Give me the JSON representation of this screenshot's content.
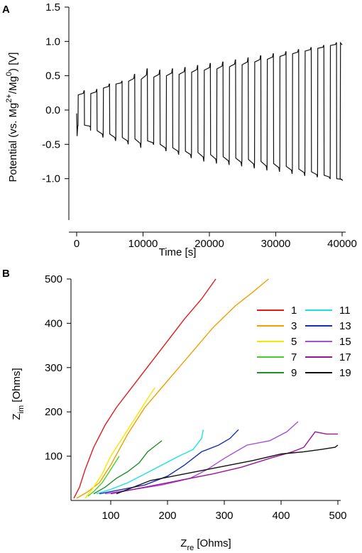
{
  "chart_data": [
    {
      "type": "line",
      "panel_label": "A",
      "xlabel": "Time [s]",
      "ylabel_parts": [
        "Potential (vs. Mg",
        "2+",
        "/Mg",
        "0",
        ") [V]"
      ],
      "xlim": [
        0,
        40000
      ],
      "ylim": [
        -1.5,
        1.5
      ],
      "xticks": [
        0,
        10000,
        20000,
        30000,
        40000
      ],
      "yticks": [
        -1.0,
        -0.5,
        0.0,
        0.5,
        1.0,
        1.5
      ],
      "ytick_labels": [
        "-1.0",
        "-0.5",
        "0.0",
        "0.5",
        "1.0",
        "1.5"
      ],
      "cycles": {
        "period": 1900,
        "start_high": [
          0.22,
          0.24,
          0.32,
          0.38,
          0.42,
          0.45,
          0.48,
          0.5,
          0.52,
          0.55,
          0.58,
          0.6,
          0.63,
          0.66,
          0.7,
          0.74,
          0.78,
          0.82,
          0.86,
          0.9,
          0.94
        ],
        "peak_high": [
          0.28,
          0.3,
          0.38,
          0.42,
          0.52,
          0.6,
          0.58,
          0.6,
          0.62,
          0.65,
          0.68,
          0.7,
          0.73,
          0.76,
          0.79,
          0.82,
          0.85,
          0.88,
          0.91,
          0.94,
          0.98
        ],
        "low_start": [
          -0.22,
          -0.3,
          -0.35,
          -0.4,
          -0.42,
          -0.45,
          -0.5,
          -0.55,
          -0.6,
          -0.62,
          -0.65,
          -0.68,
          -0.7,
          -0.72,
          -0.75,
          -0.78,
          -0.82,
          -0.86,
          -0.9,
          -0.95,
          -1.0
        ],
        "low_end": [
          -0.25,
          -0.4,
          -0.45,
          -0.5,
          -0.55,
          -0.5,
          -0.6,
          -0.65,
          -0.7,
          -0.75,
          -0.78,
          -0.8,
          -0.82,
          -0.85,
          -0.88,
          -0.9,
          -0.93,
          -0.96,
          -0.98,
          -1.0,
          -1.02
        ]
      }
    },
    {
      "type": "line",
      "panel_label": "B",
      "xlabel_main": "Z",
      "xlabel_sub": "re",
      "xlabel_unit": " [Ohms]",
      "ylabel_main": "Z",
      "ylabel_sub": "im",
      "ylabel_unit": " [Ohms]",
      "xlim": [
        30,
        505
      ],
      "ylim": [
        0,
        500
      ],
      "xticks": [
        100,
        200,
        300,
        400,
        500
      ],
      "yticks": [
        100,
        200,
        300,
        400,
        500
      ],
      "series": [
        {
          "name": "1",
          "color": "#e41a1c",
          "x": [
            35,
            45,
            55,
            70,
            90,
            110,
            140,
            170,
            200,
            230,
            260,
            285
          ],
          "y": [
            5,
            30,
            70,
            120,
            170,
            210,
            260,
            310,
            360,
            410,
            455,
            500
          ]
        },
        {
          "name": "3",
          "color": "#f0a000",
          "x": [
            40,
            60,
            80,
            100,
            130,
            160,
            200,
            240,
            280,
            320,
            350,
            378
          ],
          "y": [
            5,
            20,
            40,
            80,
            150,
            210,
            270,
            330,
            390,
            440,
            470,
            500
          ]
        },
        {
          "name": "5",
          "color": "#f5e800",
          "x": [
            55,
            70,
            85,
            100,
            115,
            130,
            150,
            165,
            178
          ],
          "y": [
            5,
            30,
            60,
            100,
            130,
            160,
            200,
            230,
            255
          ]
        },
        {
          "name": "7",
          "color": "#44d02a",
          "x": [
            60,
            70,
            85,
            95,
            105,
            115
          ],
          "y": [
            10,
            20,
            40,
            60,
            80,
            100
          ]
        },
        {
          "name": "9",
          "color": "#1f8f2a",
          "x": [
            70,
            90,
            110,
            130,
            150,
            165,
            180,
            190
          ],
          "y": [
            15,
            30,
            50,
            65,
            85,
            110,
            125,
            135
          ]
        },
        {
          "name": "11",
          "color": "#1de1e1",
          "x": [
            75,
            100,
            130,
            160,
            190,
            220,
            245,
            260,
            263
          ],
          "y": [
            15,
            25,
            40,
            60,
            80,
            100,
            115,
            140,
            160
          ]
        },
        {
          "name": "13",
          "color": "#1a2db8",
          "x": [
            80,
            120,
            160,
            200,
            230,
            260,
            290,
            310,
            325
          ],
          "y": [
            15,
            25,
            35,
            55,
            80,
            110,
            125,
            140,
            160
          ]
        },
        {
          "name": "15",
          "color": "#a64fd6",
          "x": [
            90,
            140,
            190,
            240,
            270,
            300,
            340,
            380,
            410,
            430
          ],
          "y": [
            15,
            25,
            35,
            50,
            70,
            95,
            125,
            135,
            155,
            178
          ]
        },
        {
          "name": "17",
          "color": "#a0129a",
          "x": [
            100,
            160,
            220,
            280,
            330,
            380,
            420,
            440,
            460,
            480,
            500
          ],
          "y": [
            15,
            30,
            45,
            60,
            75,
            95,
            110,
            120,
            155,
            150,
            150
          ]
        },
        {
          "name": "19",
          "color": "#111111",
          "x": [
            110,
            170,
            230,
            290,
            350,
            400,
            440,
            470,
            495,
            500
          ],
          "y": [
            15,
            45,
            60,
            75,
            90,
            105,
            110,
            115,
            120,
            125
          ]
        }
      ]
    }
  ]
}
